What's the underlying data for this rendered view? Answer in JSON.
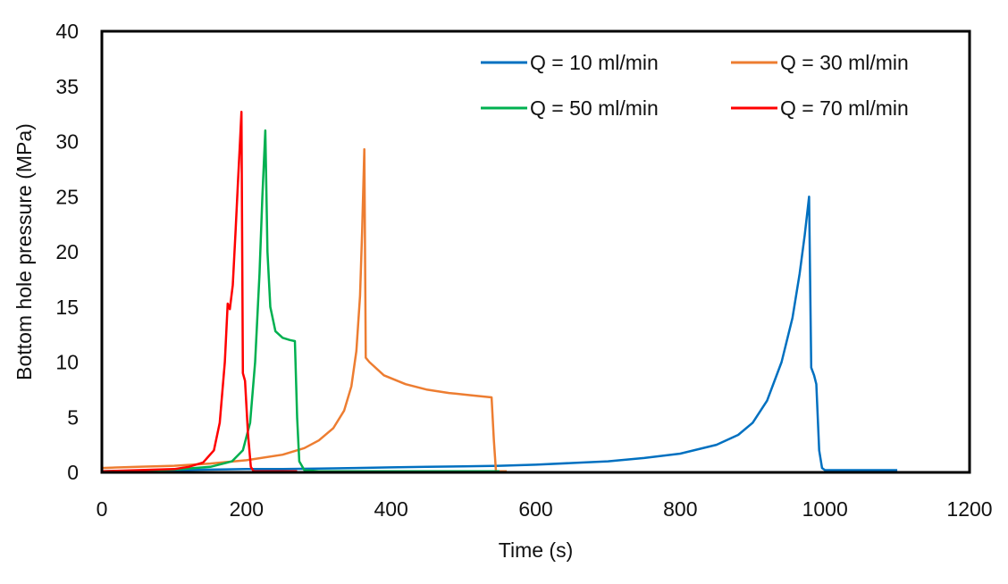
{
  "chart_data": {
    "type": "line",
    "title": "",
    "xlabel": "Time (s)",
    "ylabel": "Bottom hole pressure (MPa)",
    "xlim": [
      0,
      1200
    ],
    "ylim": [
      0,
      40
    ],
    "x_ticks": [
      0,
      200,
      400,
      600,
      800,
      1000,
      1200
    ],
    "y_ticks": [
      0,
      5,
      10,
      15,
      20,
      25,
      30,
      35,
      40
    ],
    "grid": false,
    "legend_position": "top-right",
    "series": [
      {
        "name": "Q = 10 ml/min",
        "color": "#0070C0",
        "x": [
          0,
          50,
          100,
          150,
          200,
          250,
          300,
          350,
          400,
          450,
          500,
          550,
          600,
          650,
          700,
          750,
          800,
          850,
          880,
          900,
          920,
          940,
          955,
          965,
          972,
          978,
          981,
          985,
          988,
          992,
          996,
          1000,
          1050,
          1100
        ],
        "y": [
          0.1,
          0.15,
          0.2,
          0.25,
          0.3,
          0.3,
          0.35,
          0.4,
          0.45,
          0.5,
          0.55,
          0.6,
          0.7,
          0.85,
          1.0,
          1.3,
          1.7,
          2.5,
          3.4,
          4.5,
          6.5,
          10.0,
          14.0,
          18.0,
          21.5,
          25.0,
          9.5,
          8.8,
          8.0,
          2.0,
          0.4,
          0.2,
          0.2,
          0.2
        ]
      },
      {
        "name": "Q = 30 ml/min",
        "color": "#ED7D31",
        "x": [
          0,
          50,
          100,
          150,
          200,
          250,
          280,
          300,
          320,
          335,
          345,
          352,
          357,
          360,
          363,
          365,
          370,
          390,
          420,
          450,
          480,
          510,
          539,
          542,
          545,
          560
        ],
        "y": [
          0.4,
          0.5,
          0.6,
          0.8,
          1.1,
          1.6,
          2.2,
          2.9,
          4.0,
          5.6,
          7.8,
          11.0,
          16.0,
          22.0,
          29.3,
          10.4,
          10.0,
          8.8,
          8.0,
          7.5,
          7.2,
          7.0,
          6.8,
          3.0,
          0.1,
          0.1
        ]
      },
      {
        "name": "Q = 50 ml/min",
        "color": "#00B050",
        "x": [
          0,
          50,
          100,
          150,
          180,
          195,
          205,
          212,
          218,
          222,
          226,
          229,
          233,
          240,
          250,
          260,
          267,
          270,
          273,
          280,
          300,
          350,
          400,
          450,
          500,
          550
        ],
        "y": [
          0.1,
          0.15,
          0.25,
          0.5,
          1.0,
          2.0,
          4.5,
          10.0,
          18.0,
          25.0,
          31.0,
          20.0,
          15.0,
          12.8,
          12.2,
          12.0,
          11.9,
          5.0,
          1.0,
          0.2,
          0.1,
          0.1,
          0.1,
          0.1,
          0.1,
          0.1
        ]
      },
      {
        "name": "Q = 70 ml/min",
        "color": "#FF0000",
        "x": [
          0,
          50,
          100,
          120,
          140,
          155,
          163,
          170,
          174,
          177,
          181,
          185,
          188,
          191,
          193,
          195,
          198,
          202,
          206,
          210,
          230,
          270
        ],
        "y": [
          0.1,
          0.2,
          0.3,
          0.5,
          0.9,
          2.0,
          4.5,
          10.0,
          15.3,
          14.8,
          17.0,
          22.0,
          26.0,
          30.0,
          32.7,
          9.0,
          8.3,
          3.5,
          0.5,
          0.1,
          0.1,
          0.1
        ]
      }
    ]
  }
}
